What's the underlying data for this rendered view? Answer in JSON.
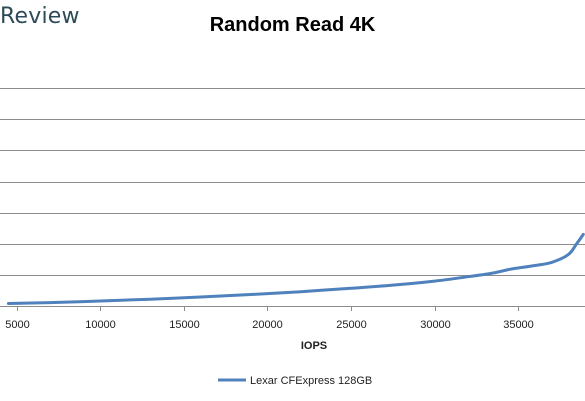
{
  "header": {
    "logo_text": "Review"
  },
  "chart_data": {
    "type": "line",
    "title": "Random Read 4K",
    "xlabel": "IOPS",
    "ylabel": "",
    "xlim": [
      4000,
      39000
    ],
    "x_ticks": [
      5000,
      10000,
      15000,
      20000,
      25000,
      30000,
      35000
    ],
    "ylim": [
      0,
      8
    ],
    "y_gridlines": [
      1,
      2,
      3,
      4,
      5,
      6,
      7
    ],
    "grid": true,
    "legend_position": "bottom",
    "series": [
      {
        "name": "Lexar CFExpress 128GB",
        "color": "#4f81bd",
        "x": [
          4500,
          7000,
          10000,
          13000,
          16000,
          19000,
          22000,
          25000,
          27500,
          30000,
          32000,
          33500,
          34500,
          35000,
          36000,
          37000,
          38000,
          38500,
          38900
        ],
        "y": [
          0.08,
          0.11,
          0.16,
          0.22,
          0.29,
          0.37,
          0.46,
          0.57,
          0.67,
          0.8,
          0.94,
          1.06,
          1.18,
          1.22,
          1.3,
          1.4,
          1.65,
          2.0,
          2.3
        ]
      }
    ]
  }
}
